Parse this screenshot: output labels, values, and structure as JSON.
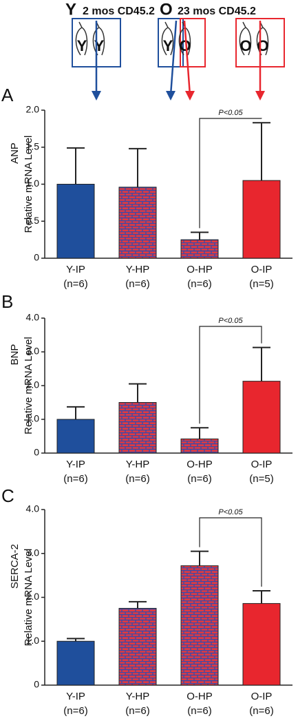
{
  "header": {
    "young": {
      "letter": "Y",
      "label": "2 mos CD45.2",
      "color": "#1f4f9c"
    },
    "old": {
      "letter": "O",
      "label": "23 mos CD45.2",
      "color": "#e8262e"
    },
    "mice": [
      [
        "Y",
        "Y"
      ],
      [
        "Y",
        "O"
      ],
      [
        "O",
        "O"
      ]
    ]
  },
  "chart_data": [
    {
      "type": "bar",
      "panel": "A",
      "ylabel": "ANP",
      "ylabel2": "Relative mRNA Level",
      "categories": [
        "Y-IP",
        "Y-HP",
        "O-HP",
        "O-IP"
      ],
      "n_labels": [
        "(n=6)",
        "(n=6)",
        "(n=6)",
        "(n=5)"
      ],
      "values": [
        1.0,
        0.96,
        0.25,
        1.05
      ],
      "errors": [
        0.49,
        0.52,
        0.1,
        0.78
      ],
      "colors": [
        "#1f4f9c",
        "#e23a3f",
        "#e23a3f",
        "#e8262e"
      ],
      "patterned": [
        false,
        true,
        true,
        false
      ],
      "annotation": "P<0.05",
      "ylim": [
        0,
        2.0
      ],
      "yticks": [
        0,
        0.5,
        {
          "value": 1.0,
          "label": "1.0"
        },
        1.5,
        {
          "value": 2.0,
          "label": "2.0"
        }
      ]
    },
    {
      "type": "bar",
      "panel": "B",
      "ylabel": "BNP",
      "ylabel2": "Relative mRNA Level",
      "categories": [
        "Y-IP",
        "Y-HP",
        "O-HP",
        "O-IP"
      ],
      "n_labels": [
        "(n=6)",
        "(n=6)",
        "(n=6)",
        "(n=5)"
      ],
      "values": [
        1.0,
        1.5,
        0.42,
        2.13
      ],
      "errors": [
        0.37,
        0.55,
        0.33,
        1.0
      ],
      "colors": [
        "#1f4f9c",
        "#e23a3f",
        "#e23a3f",
        "#e8262e"
      ],
      "patterned": [
        false,
        true,
        true,
        false
      ],
      "annotation": "P<0.05",
      "ylim": [
        0,
        4.0
      ],
      "yticks": [
        0,
        {
          "value": 1.0,
          "label": "1.0"
        },
        {
          "value": 2.0,
          "label": "2.0"
        },
        {
          "value": 3.0,
          "label": "3.0"
        },
        {
          "value": 4.0,
          "label": "4.0"
        }
      ]
    },
    {
      "type": "bar",
      "panel": "C",
      "ylabel": "SERCA-2",
      "ylabel2": "Relative mRNA Level",
      "categories": [
        "Y-IP",
        "Y-HP",
        "O-HP",
        "O-IP"
      ],
      "n_labels": [
        "(n=6)",
        "(n=6)",
        "(n=6)",
        "(n=6)"
      ],
      "values": [
        1.0,
        1.75,
        2.72,
        1.86
      ],
      "errors": [
        0.06,
        0.15,
        0.33,
        0.29
      ],
      "colors": [
        "#1f4f9c",
        "#e23a3f",
        "#e23a3f",
        "#e8262e"
      ],
      "patterned": [
        false,
        true,
        true,
        false
      ],
      "annotation": "P<0.05",
      "ylim": [
        0,
        4.0
      ],
      "yticks": [
        0,
        {
          "value": 1.0,
          "label": "1.0"
        },
        {
          "value": 2.0,
          "label": "2.0"
        },
        {
          "value": 3.0,
          "label": "3.0"
        },
        {
          "value": 4.0,
          "label": "4.0"
        }
      ]
    }
  ]
}
